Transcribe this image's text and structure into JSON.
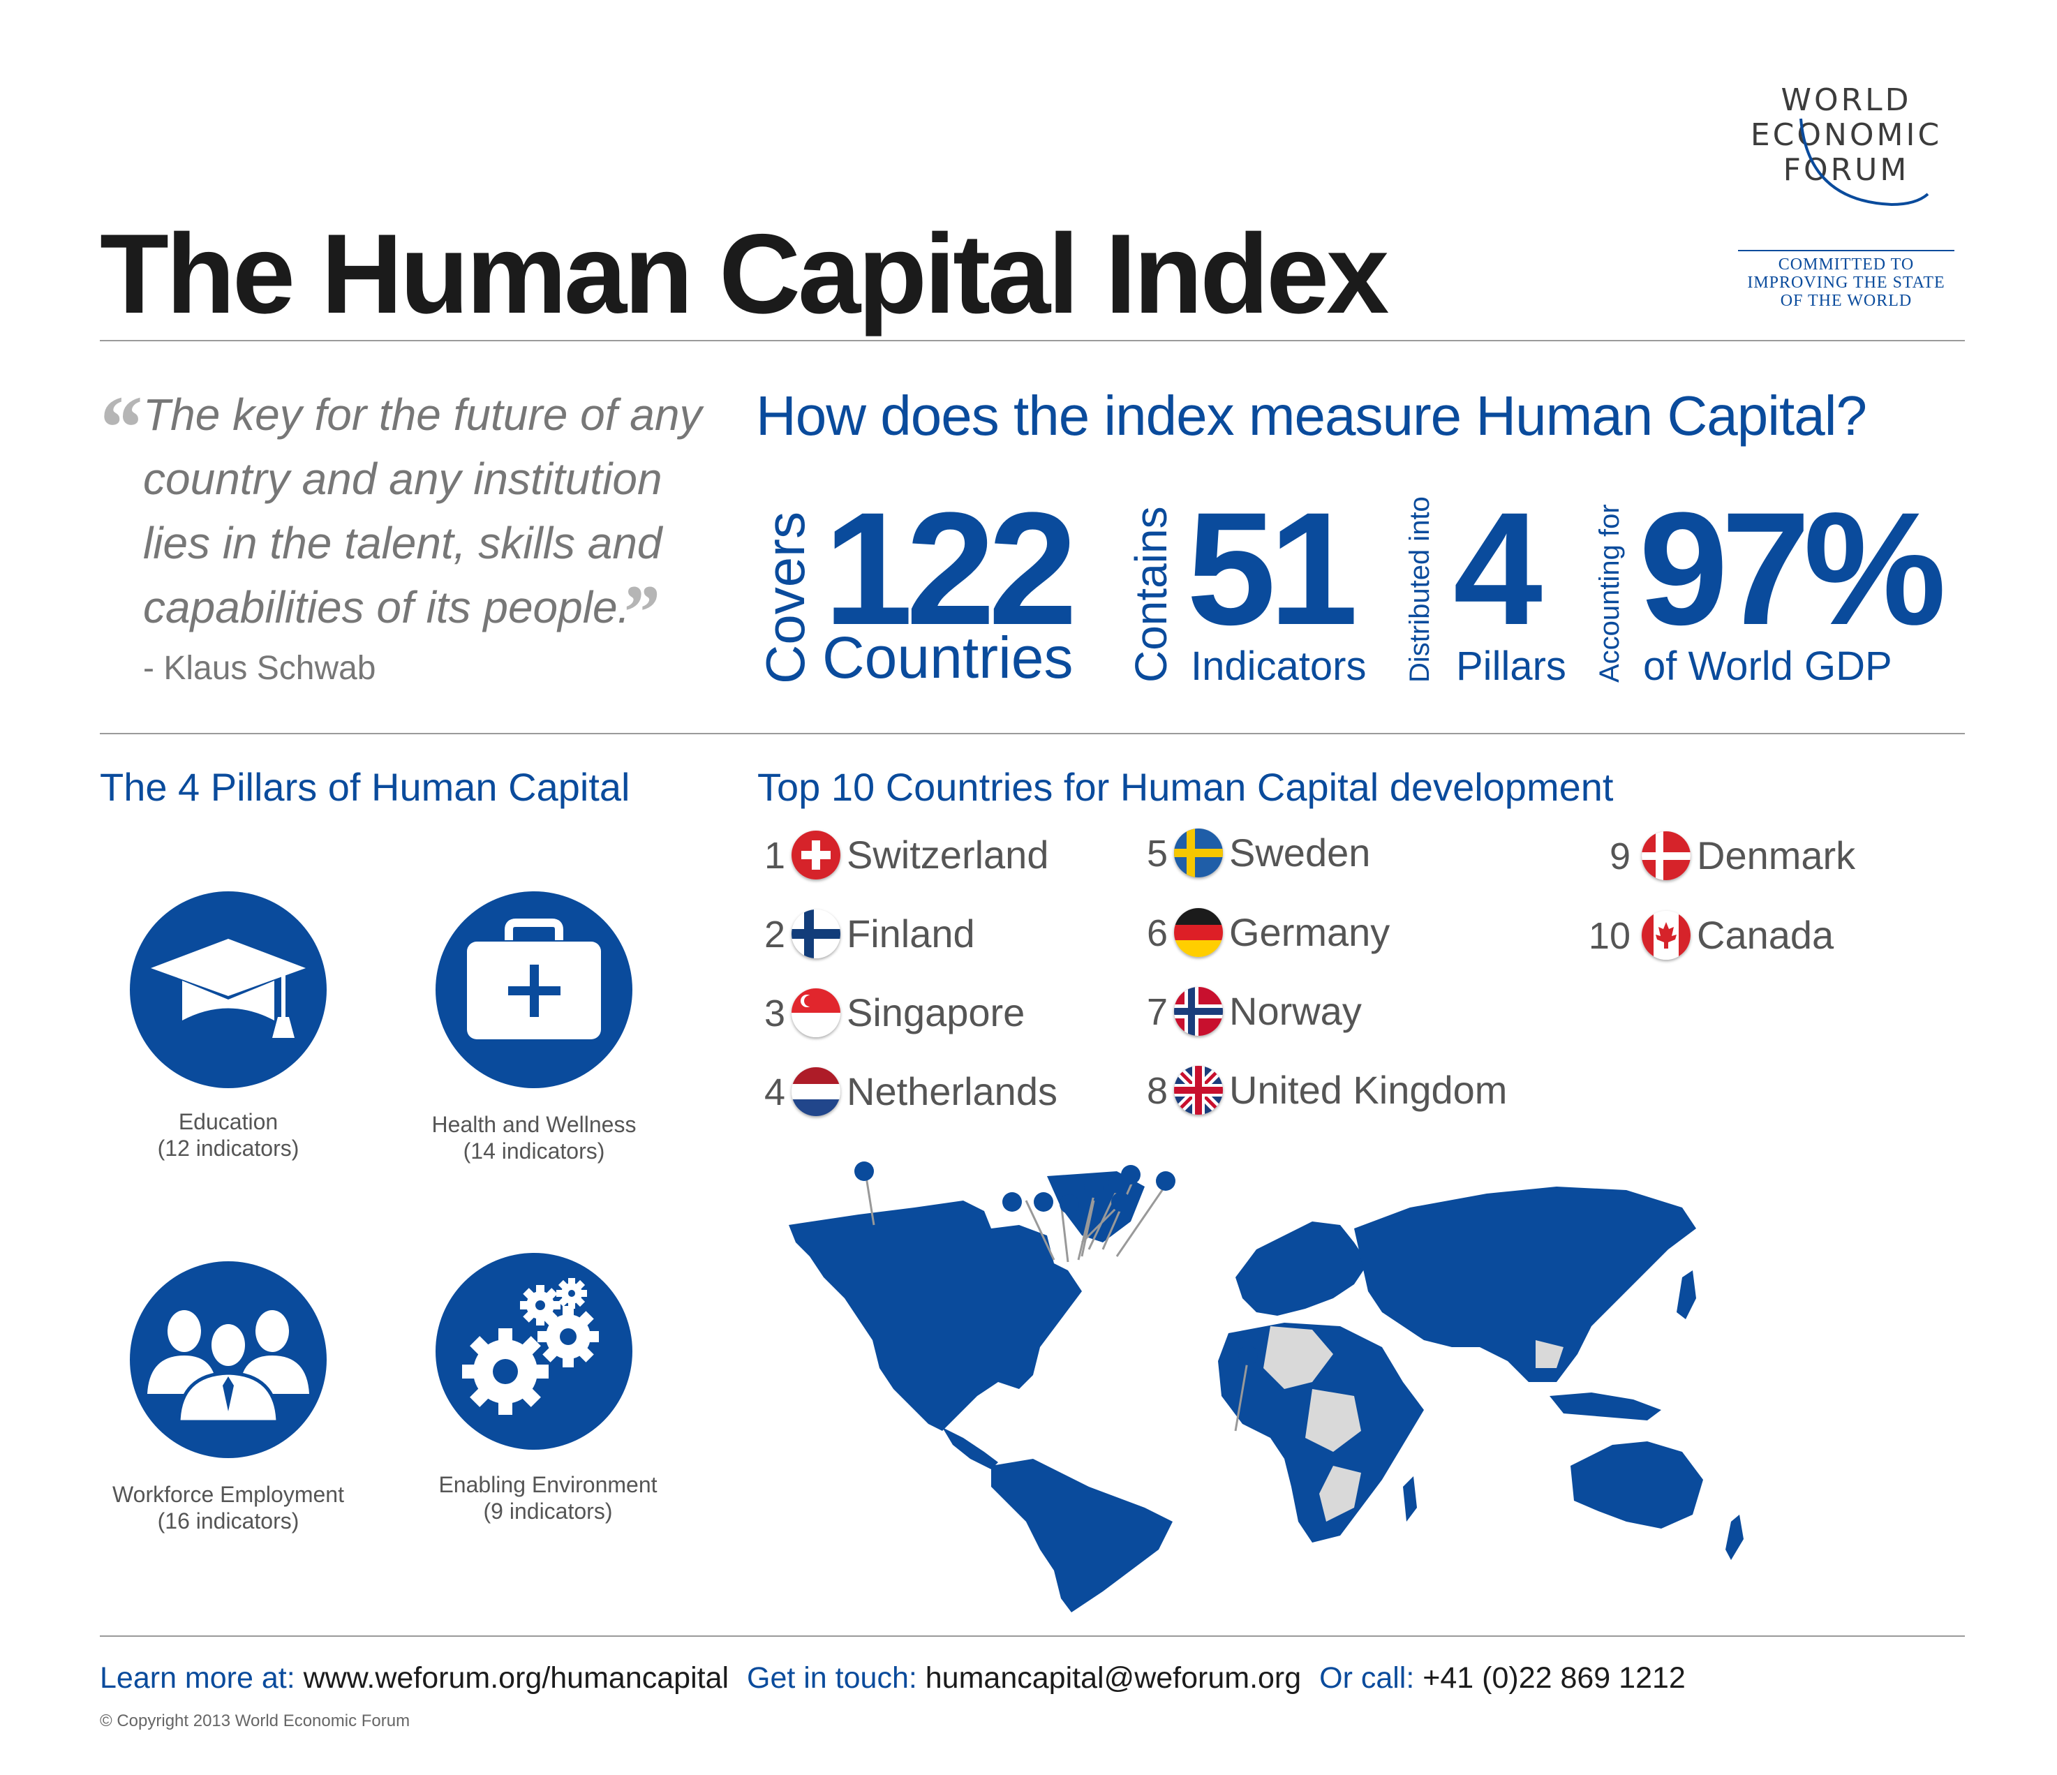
{
  "header": {
    "title": "The Human Capital Index",
    "logo": {
      "line1": "WORLD",
      "line2": "ECONOMIC",
      "line3": "FORUM",
      "tagline": [
        "COMMITTED TO",
        "IMPROVING THE STATE",
        "OF THE WORLD"
      ]
    }
  },
  "quote": {
    "lines": [
      "The key for the future of any",
      "country and any institution",
      "lies in the talent, skills and",
      "capabilities of its people."
    ],
    "author": "- Klaus Schwab"
  },
  "measure": {
    "title": "How does the index measure Human Capital?",
    "stats": [
      {
        "verb": "Covers",
        "value": "122",
        "unit": "Countries"
      },
      {
        "verb": "Contains",
        "value": "51",
        "unit": "Indicators"
      },
      {
        "verb": "Distributed into",
        "value": "4",
        "unit": "Pillars"
      },
      {
        "verb": "Accounting for",
        "value": "97%",
        "unit": "of World GDP"
      }
    ]
  },
  "pillars": {
    "title": "The 4 Pillars of Human Capital",
    "items": [
      {
        "name": "Education",
        "count": "(12 indicators)",
        "icon": "graduation-cap-icon"
      },
      {
        "name": "Health and Wellness",
        "count": "(14 indicators)",
        "icon": "medical-kit-icon"
      },
      {
        "name": "Workforce Employment",
        "count": "(16 indicators)",
        "icon": "people-group-icon"
      },
      {
        "name": "Enabling Environment",
        "count": "(9 indicators)",
        "icon": "gears-icon"
      }
    ]
  },
  "top10": {
    "title": "Top 10 Countries for Human Capital development",
    "countries": [
      {
        "rank": "1",
        "name": "Switzerland",
        "flag": "switzerland-flag-icon"
      },
      {
        "rank": "2",
        "name": "Finland",
        "flag": "finland-flag-icon"
      },
      {
        "rank": "3",
        "name": "Singapore",
        "flag": "singapore-flag-icon"
      },
      {
        "rank": "4",
        "name": "Netherlands",
        "flag": "netherlands-flag-icon"
      },
      {
        "rank": "5",
        "name": "Sweden",
        "flag": "sweden-flag-icon"
      },
      {
        "rank": "6",
        "name": "Germany",
        "flag": "germany-flag-icon"
      },
      {
        "rank": "7",
        "name": "Norway",
        "flag": "norway-flag-icon"
      },
      {
        "rank": "8",
        "name": "United Kingdom",
        "flag": "uk-flag-icon"
      },
      {
        "rank": "9",
        "name": "Denmark",
        "flag": "denmark-flag-icon"
      },
      {
        "rank": "10",
        "name": "Canada",
        "flag": "canada-flag-icon"
      }
    ]
  },
  "colors": {
    "brand_blue": "#0a4b9c",
    "map_grey": "#d9d9d9",
    "text_grey": "#777777"
  },
  "footer": {
    "learn_label": "Learn more at:",
    "learn_value": "www.weforum.org/humancapital",
    "touch_label": "Get in touch:",
    "touch_value": "humancapital@weforum.org",
    "call_label": "Or call:",
    "call_value": "+41 (0)22 869 1212",
    "copyright": "© Copyright 2013 World Economic Forum"
  }
}
